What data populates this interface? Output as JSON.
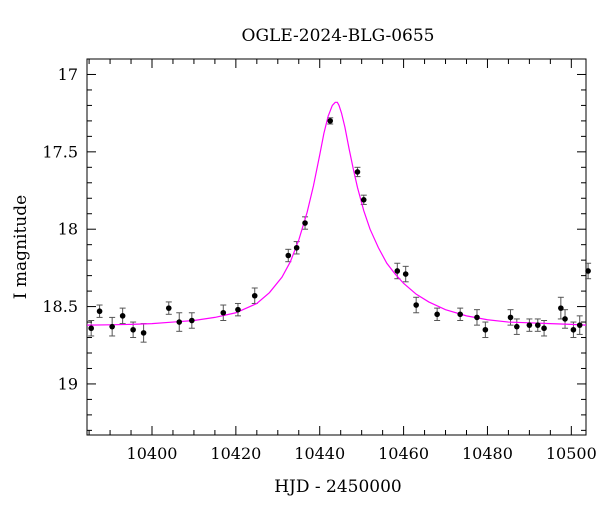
{
  "chart_data": {
    "type": "scatter",
    "title": "OGLE-2024-BLG-0655",
    "xlabel": "HJD - 2450000",
    "ylabel": "I magnitude",
    "xlim": [
      10384.5,
      10503.5
    ],
    "ylim": [
      19.33,
      16.9
    ],
    "y_inverted": true,
    "x_ticks": [
      10400,
      10420,
      10440,
      10460,
      10480,
      10500
    ],
    "y_ticks": [
      17,
      17.5,
      18,
      18.5,
      19
    ],
    "x_tick_labels": [
      "10400",
      "10420",
      "10440",
      "10460",
      "10480",
      "10500"
    ],
    "y_tick_labels": [
      "17",
      "17.5",
      "18",
      "18.5",
      "19"
    ],
    "grid": false,
    "series": [
      {
        "kind": "points_with_errorbars",
        "color": "#000000",
        "x": [
          10385.5,
          10387.5,
          10390.5,
          10393.0,
          10395.5,
          10398.0,
          10404.0,
          10406.5,
          10409.5,
          10417.0,
          10420.5,
          10424.5,
          10432.5,
          10434.5,
          10436.5,
          10442.5,
          10449.0,
          10450.5,
          10458.5,
          10460.5,
          10463.0,
          10468.0,
          10473.5,
          10477.5,
          10479.5,
          10485.5,
          10487.0,
          10490.0,
          10492.0,
          10493.5,
          10497.5,
          10498.5,
          10500.5,
          10502.0,
          10504.0
        ],
        "y": [
          18.64,
          18.53,
          18.63,
          18.56,
          18.65,
          18.67,
          18.51,
          18.6,
          18.59,
          18.54,
          18.52,
          18.43,
          18.17,
          18.12,
          17.96,
          17.3,
          17.63,
          17.81,
          18.27,
          18.29,
          18.49,
          18.55,
          18.55,
          18.57,
          18.65,
          18.57,
          18.63,
          18.62,
          18.62,
          18.64,
          18.51,
          18.58,
          18.65,
          18.62,
          18.27
        ],
        "err": [
          0.05,
          0.04,
          0.06,
          0.05,
          0.05,
          0.06,
          0.04,
          0.06,
          0.05,
          0.05,
          0.04,
          0.05,
          0.04,
          0.04,
          0.04,
          0.02,
          0.03,
          0.03,
          0.05,
          0.05,
          0.05,
          0.04,
          0.04,
          0.05,
          0.05,
          0.05,
          0.05,
          0.04,
          0.04,
          0.05,
          0.07,
          0.06,
          0.05,
          0.06,
          0.05
        ]
      },
      {
        "kind": "model_curve",
        "color": "#ff00ff",
        "x": [
          10384.5,
          10390,
          10395,
          10400,
          10405,
          10410,
          10415,
          10420,
          10425,
          10428,
          10431,
          10433,
          10435,
          10437,
          10438.5,
          10440,
          10441,
          10442,
          10443,
          10443.7,
          10444.2,
          10444.6,
          10445.2,
          10446,
          10447,
          10448,
          10449,
          10450.5,
          10452,
          10454,
          10456,
          10458,
          10460,
          10463,
          10466,
          10470,
          10475,
          10480,
          10485,
          10490,
          10495,
          10500,
          10503.5
        ],
        "y": [
          18.62,
          18.618,
          18.615,
          18.61,
          18.6,
          18.59,
          18.57,
          18.54,
          18.48,
          18.41,
          18.31,
          18.21,
          18.07,
          17.89,
          17.72,
          17.52,
          17.38,
          17.27,
          17.2,
          17.18,
          17.18,
          17.2,
          17.25,
          17.34,
          17.48,
          17.61,
          17.73,
          17.88,
          18.0,
          18.12,
          18.22,
          18.29,
          18.35,
          18.42,
          18.47,
          18.52,
          18.56,
          18.585,
          18.6,
          18.605,
          18.61,
          18.615,
          18.62
        ]
      }
    ]
  }
}
